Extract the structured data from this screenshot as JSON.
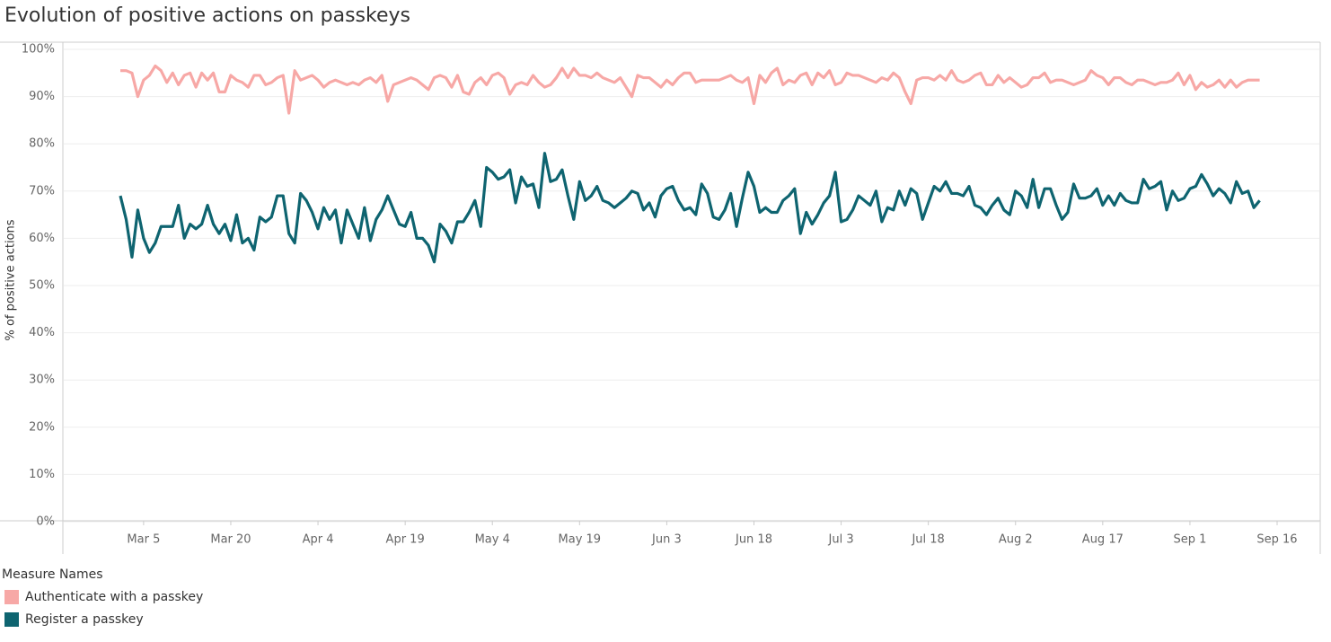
{
  "chart_data": {
    "type": "line",
    "title": "Evolution of positive actions on passkeys",
    "ylabel": "% of positive actions",
    "legend_title": "Measure Names",
    "ylim": [
      0,
      100
    ],
    "yticks": [
      {
        "value": 0,
        "label": "0%"
      },
      {
        "value": 10,
        "label": "10%"
      },
      {
        "value": 20,
        "label": "20%"
      },
      {
        "value": 30,
        "label": "30%"
      },
      {
        "value": 40,
        "label": "40%"
      },
      {
        "value": 50,
        "label": "50%"
      },
      {
        "value": 60,
        "label": "60%"
      },
      {
        "value": 70,
        "label": "70%"
      },
      {
        "value": 80,
        "label": "80%"
      },
      {
        "value": 90,
        "label": "90%"
      },
      {
        "value": 100,
        "label": "100%"
      }
    ],
    "grid": true,
    "categories": [
      null,
      null,
      null,
      null,
      "Mar 5",
      null,
      null,
      null,
      null,
      null,
      null,
      null,
      null,
      null,
      null,
      null,
      null,
      null,
      null,
      "Mar 20",
      null,
      null,
      null,
      null,
      null,
      null,
      null,
      null,
      null,
      null,
      null,
      null,
      null,
      null,
      "Apr 4",
      null,
      null,
      null,
      null,
      null,
      null,
      null,
      null,
      null,
      null,
      null,
      null,
      null,
      null,
      "Apr 19",
      null,
      null,
      null,
      null,
      null,
      null,
      null,
      null,
      null,
      null,
      null,
      null,
      null,
      null,
      "May 4",
      null,
      null,
      null,
      null,
      null,
      null,
      null,
      null,
      null,
      null,
      null,
      null,
      null,
      null,
      "May 19",
      null,
      null,
      null,
      null,
      null,
      null,
      null,
      null,
      null,
      null,
      null,
      null,
      null,
      null,
      "Jun 3",
      null,
      null,
      null,
      null,
      null,
      null,
      null,
      null,
      null,
      null,
      null,
      null,
      null,
      null,
      "Jun 18",
      null,
      null,
      null,
      null,
      null,
      null,
      null,
      null,
      null,
      null,
      null,
      null,
      null,
      null,
      "Jul 3",
      null,
      null,
      null,
      null,
      null,
      null,
      null,
      null,
      null,
      null,
      null,
      null,
      null,
      null,
      "Jul 18",
      null,
      null,
      null,
      null,
      null,
      null,
      null,
      null,
      null,
      null,
      null,
      null,
      null,
      null,
      "Aug 2",
      null,
      null,
      null,
      null,
      null,
      null,
      null,
      null,
      null,
      null,
      null,
      null,
      null,
      null,
      "Aug 17",
      null,
      null,
      null,
      null,
      null,
      null,
      null,
      null,
      null,
      null,
      null,
      null,
      null,
      null,
      "Sep 1",
      null,
      null,
      null,
      null,
      null,
      null,
      null,
      null,
      null,
      null,
      null,
      null,
      null,
      null,
      "Sep 16"
    ],
    "series": [
      {
        "name": "Authenticate with a passkey",
        "color": "#f7a8a6",
        "values": [
          95.5,
          95.5,
          95,
          90,
          93.5,
          94.5,
          96.5,
          95.5,
          93,
          95,
          92.5,
          94.5,
          95,
          92,
          95,
          93.5,
          95,
          91,
          91,
          94.5,
          93.5,
          93,
          92,
          94.5,
          94.5,
          92.5,
          93,
          94,
          94.5,
          86.5,
          95.5,
          93.5,
          94,
          94.5,
          93.5,
          92,
          93,
          93.5,
          93,
          92.5,
          93,
          92.5,
          93.5,
          94,
          93,
          94.5,
          89,
          92.5,
          93,
          93.5,
          94,
          93.5,
          92.5,
          91.5,
          94,
          94.5,
          94,
          92,
          94.5,
          91,
          90.5,
          93,
          94,
          92.5,
          94.5,
          95,
          94,
          90.5,
          92.5,
          93,
          92.5,
          94.5,
          93,
          92,
          92.5,
          94,
          96,
          94,
          96,
          94.5,
          94.5,
          94,
          95,
          94,
          93.5,
          93,
          94,
          92,
          90,
          94.5,
          94,
          94,
          93,
          92,
          93.5,
          92.5,
          94,
          95,
          95,
          93,
          93.5,
          93.5,
          93.5,
          93.5,
          94,
          94.5,
          93.5,
          93,
          94,
          88.5,
          94.5,
          93,
          95,
          96,
          92.5,
          93.5,
          93,
          94.5,
          95,
          92.5,
          95,
          94,
          95.5,
          92.5,
          93,
          95,
          94.5,
          94.5,
          94,
          93.5,
          93,
          94,
          93.5,
          95,
          94,
          91,
          88.5,
          93.5,
          94,
          94,
          93.5,
          94.5,
          93.5,
          95.5,
          93.5,
          93,
          93.5,
          94.5,
          95,
          92.5,
          92.5,
          94.5,
          93,
          94,
          93,
          92,
          92.5,
          94,
          94,
          95,
          93,
          93.5,
          93.5,
          93,
          92.5,
          93,
          93.5,
          95.5,
          94.5,
          94,
          92.5,
          94,
          94,
          93,
          92.5,
          93.5,
          93.5,
          93,
          92.5,
          93,
          93,
          93.5,
          95,
          92.5,
          94.5,
          91.5,
          93,
          92,
          92.5,
          93.5,
          92,
          93.5,
          92,
          93,
          93.5,
          93.5,
          93.5,
          null,
          null,
          null
        ]
      },
      {
        "name": "Register a passkey",
        "color": "#0e6470",
        "values": [
          69,
          64,
          56,
          66,
          60,
          57,
          59,
          62.5,
          62.5,
          62.5,
          67,
          60,
          63,
          62,
          63,
          67,
          63,
          61,
          63,
          59.5,
          65,
          59,
          60,
          57.5,
          64.5,
          63.5,
          64.5,
          69,
          69,
          61,
          59,
          69.5,
          68,
          65.5,
          62,
          66.5,
          64,
          66,
          59,
          66,
          63,
          60,
          66.5,
          59.5,
          64,
          66,
          69,
          66,
          63,
          62.5,
          65.5,
          60,
          60,
          58.5,
          55,
          63,
          61.5,
          59,
          63.5,
          63.5,
          65.5,
          68,
          62.5,
          75,
          74,
          72.5,
          73,
          74.5,
          67.5,
          73,
          71,
          71.5,
          66.5,
          78,
          72,
          72.5,
          74.5,
          69,
          64,
          72,
          68,
          69,
          71,
          68,
          67.5,
          66.5,
          67.5,
          68.5,
          70,
          69.5,
          66,
          67.5,
          64.5,
          69,
          70.5,
          71,
          68,
          66,
          66.5,
          65,
          71.5,
          69.5,
          64.5,
          64,
          66,
          69.5,
          62.5,
          68.5,
          74,
          71,
          65.5,
          66.5,
          65.5,
          65.5,
          68,
          69,
          70.5,
          61,
          65.5,
          63,
          65,
          67.5,
          69,
          74,
          63.5,
          64,
          66,
          69,
          68,
          67,
          70,
          63.5,
          66.5,
          66,
          70,
          67,
          70.5,
          69.5,
          64,
          67.5,
          71,
          70,
          72,
          69.5,
          69.5,
          69,
          71,
          67,
          66.5,
          65,
          67,
          68.5,
          66,
          65,
          70,
          69,
          66.5,
          72.5,
          66.5,
          70.5,
          70.5,
          67,
          64,
          65.5,
          71.5,
          68.5,
          68.5,
          69,
          70.5,
          67,
          69,
          67,
          69.5,
          68,
          67.5,
          67.5,
          72.5,
          70.5,
          71,
          72,
          66,
          70,
          68,
          68.5,
          70.5,
          71,
          73.5,
          71.5,
          69,
          70.5,
          69.5,
          67.5,
          72,
          69.5,
          70,
          66.5,
          68,
          null,
          null,
          null
        ]
      }
    ]
  }
}
